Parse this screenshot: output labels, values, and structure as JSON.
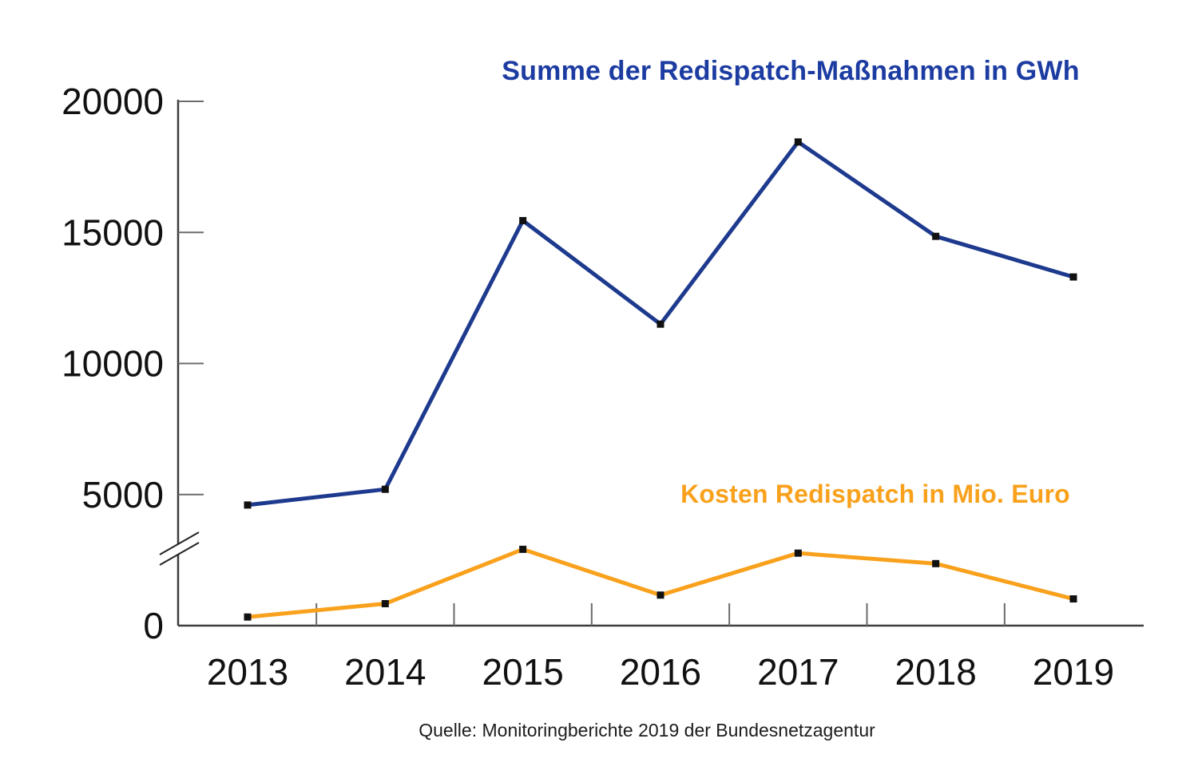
{
  "annotations": {
    "series_gwh_label": "Summe der Redispatch-Maßnahmen in GWh",
    "series_costs_label": "Kosten Redispatch in Mio. Euro",
    "source": "Quelle: Monitoringberichte 2019 der Bundesnetzagentur"
  },
  "chart_data": {
    "type": "line",
    "title": "Summe der Redispatch-Maßnahmen in GWh",
    "xlabel": "",
    "ylabel": "",
    "categories": [
      "2013",
      "2014",
      "2015",
      "2016",
      "2017",
      "2018",
      "2019"
    ],
    "series": [
      {
        "name": "Summe der Redispatch-Maßnahmen in GWh",
        "unit": "GWh",
        "color": "#1e3a8e",
        "values": [
          4600,
          5200,
          15450,
          11500,
          18450,
          14850,
          13300
        ]
      },
      {
        "name": "Kosten Redispatch in Mio. Euro",
        "unit": "Mio. Euro",
        "color": "#f9a11c",
        "values": [
          45,
          115,
          400,
          160,
          380,
          325,
          140
        ],
        "secondary_axis_shown": false
      }
    ],
    "y_axis": {
      "ticks": [
        0,
        5000,
        10000,
        15000,
        20000
      ],
      "tick_labels": [
        "0",
        "5000",
        "10000",
        "15000",
        "20000"
      ],
      "range": [
        0,
        20000
      ],
      "axis_break_between": [
        0,
        5000
      ]
    },
    "grid": false,
    "legend_position": "inline-annotations",
    "marker": "black-square",
    "marker_color": "#111111",
    "axis_color": "#3c3c3c",
    "tick_color": "#6b6b6b"
  }
}
